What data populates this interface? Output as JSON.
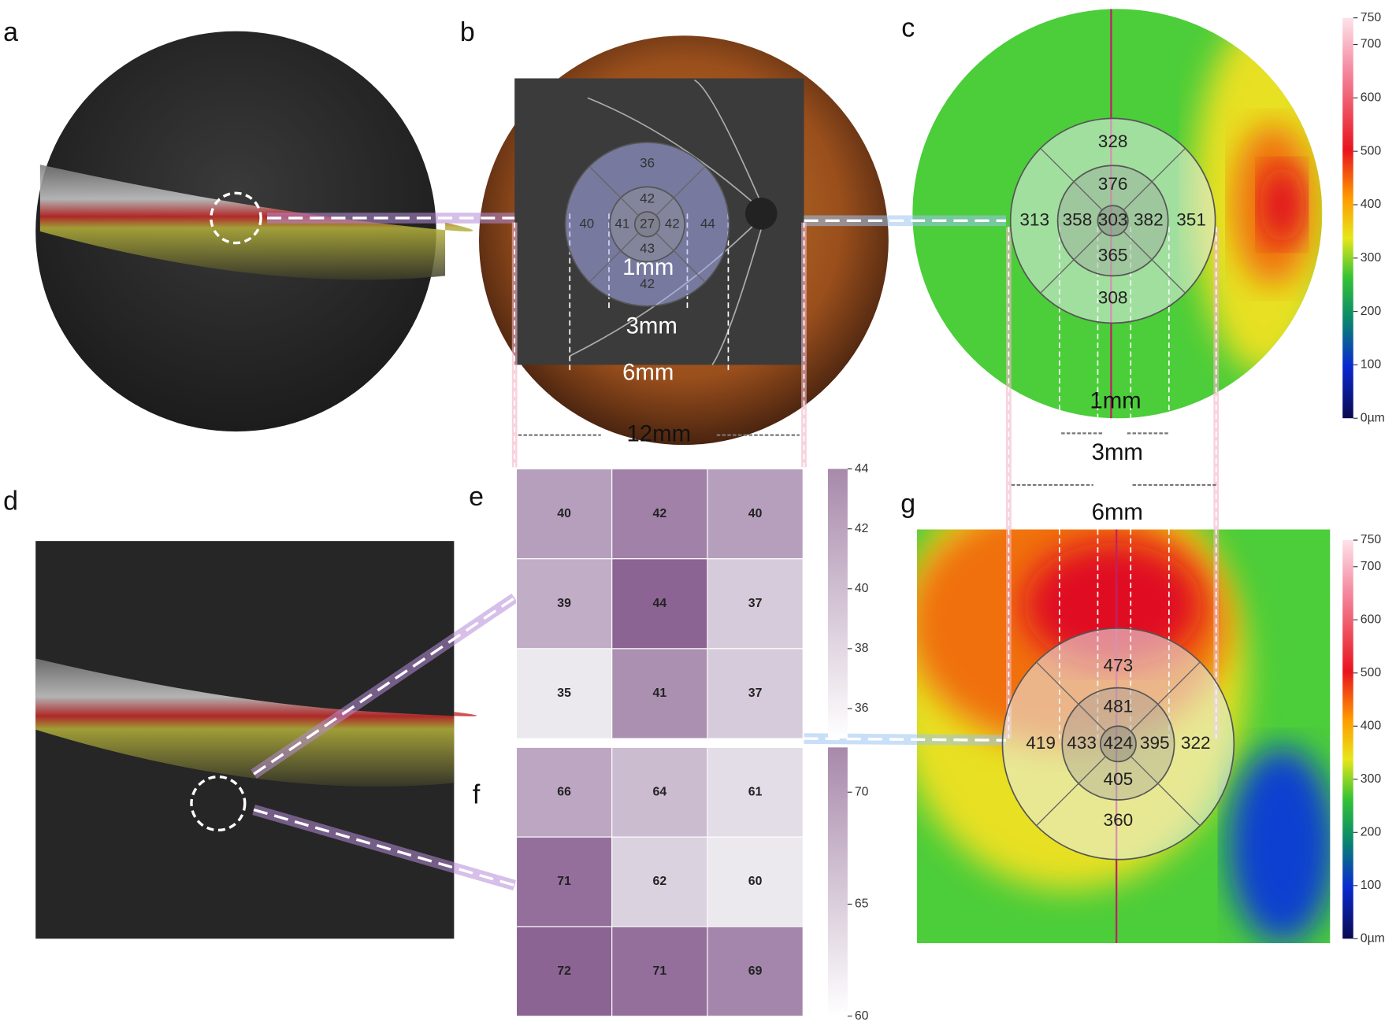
{
  "panel_labels": [
    "a",
    "b",
    "c",
    "d",
    "e",
    "f",
    "g"
  ],
  "b": {
    "etdrs": {
      "center": 27,
      "inner": [
        42,
        42,
        43,
        41
      ],
      "outer": [
        36,
        44,
        42,
        40
      ]
    },
    "scales": [
      "1mm",
      "3mm",
      "6mm",
      "12mm"
    ]
  },
  "c": {
    "etdrs": {
      "center": 303,
      "inner": [
        376,
        382,
        365,
        358
      ],
      "outer": [
        328,
        351,
        308,
        313
      ]
    },
    "scales": [
      "1mm",
      "3mm",
      "6mm"
    ]
  },
  "thickness_colorbar": {
    "range": [
      0,
      750
    ],
    "ticks": [
      750,
      700,
      600,
      500,
      400,
      300,
      200,
      100,
      {
        "value": 0,
        "label": "0µm"
      }
    ]
  },
  "e": {
    "grid": [
      [
        40,
        42,
        40
      ],
      [
        39,
        44,
        37
      ],
      [
        35,
        41,
        37
      ]
    ],
    "colorbar": {
      "range": [
        35,
        44
      ],
      "ticks": [
        44,
        42,
        40,
        38,
        36
      ]
    }
  },
  "f": {
    "grid": [
      [
        66,
        64,
        61
      ],
      [
        71,
        62,
        60
      ],
      [
        72,
        71,
        69
      ]
    ],
    "colorbar": {
      "range": [
        60,
        72
      ],
      "ticks": [
        70,
        65,
        60
      ]
    }
  },
  "g": {
    "etdrs": {
      "center": 424,
      "inner": [
        481,
        395,
        405,
        433
      ],
      "outer": [
        473,
        322,
        360,
        419
      ]
    }
  }
}
